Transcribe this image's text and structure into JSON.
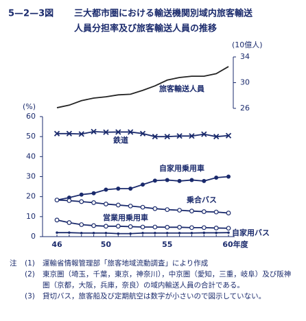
{
  "figure": {
    "number": "5—2—3図",
    "title_lines": [
      "三大都市圏における輸送機関別域内旅客輸送",
      "人員分担率及び旅客輸送人員の推移"
    ]
  },
  "chart_data": [
    {
      "type": "line",
      "y_unit": "(10億人)",
      "categories": [
        "46",
        null,
        null,
        null,
        "50",
        null,
        null,
        null,
        null,
        "55",
        null,
        null,
        null,
        null,
        "60年度"
      ],
      "ylim": [
        26,
        34
      ],
      "yticks": [
        26,
        30,
        34
      ],
      "series": [
        {
          "name": "旅客輸送人員",
          "color": "#222222",
          "marker": "none",
          "values": [
            26.1,
            26.5,
            27.2,
            27.6,
            27.8,
            28.1,
            28.2,
            28.8,
            29.5,
            30.4,
            30.8,
            31.0,
            31.0,
            31.4,
            32.5
          ]
        }
      ]
    },
    {
      "type": "line",
      "y_unit": "(%)",
      "categories": [
        "46",
        null,
        null,
        null,
        "50",
        null,
        null,
        null,
        null,
        "55",
        null,
        null,
        null,
        null,
        "60年度"
      ],
      "ylim": [
        0,
        60
      ],
      "yticks": [
        0,
        10,
        20,
        30,
        40,
        50,
        60
      ],
      "series": [
        {
          "name": "鉄道",
          "color": "#1a2a6c",
          "marker": "x",
          "values": [
            51.5,
            51.5,
            51.3,
            52.5,
            52.2,
            52.3,
            52.3,
            51.5,
            50,
            50,
            50.3,
            50.3,
            51.2,
            50,
            50.5
          ]
        },
        {
          "name": "自家用乗用車",
          "color": "#1a2a6c",
          "marker": "circle",
          "values": [
            18.3,
            19.5,
            21,
            21.7,
            23.5,
            24,
            24,
            26,
            28,
            28.3,
            27.8,
            28.3,
            27.8,
            29.5,
            30
          ]
        },
        {
          "name": "乗合バス",
          "color": "#1a2a6c",
          "marker": "open-circle",
          "values": [
            18.3,
            18,
            17.5,
            17,
            16.3,
            15.8,
            15.3,
            14.7,
            14,
            13.5,
            13.2,
            12.8,
            12.5,
            12.3,
            11.8
          ]
        },
        {
          "name": "営業用乗用車",
          "color": "#1a2a6c",
          "marker": "open-circle",
          "values": [
            8.3,
            7,
            6,
            5.5,
            5.2,
            5.2,
            5,
            4.8,
            4.8,
            4.7,
            4.7,
            4.5,
            4.5,
            4.3,
            4.2
          ]
        },
        {
          "name": "自家用バス",
          "color": "#1a2a6c",
          "marker": "small",
          "values": [
            2,
            2,
            1.8,
            1.8,
            1.8,
            1.5,
            1.5,
            1.8,
            1.8,
            1.8,
            1.8,
            1.8,
            1.9,
            1.9,
            2
          ]
        }
      ]
    }
  ],
  "notes": {
    "label": "注",
    "items": [
      {
        "num": "(1)",
        "text": "運輸省情報管理部「旅客地域流動調査」により作成"
      },
      {
        "num": "(2)",
        "text": "東京圏（埼玉，千葉，東京，神奈川），中京圏（愛知，三重，岐阜）及び阪神圏（京都，大阪，兵庫，奈良）の域内輸送人員の合計である。"
      },
      {
        "num": "(3)",
        "text": "貸切バス，旅客船及び定期航空は数字が小さいので図示していない。"
      }
    ]
  }
}
